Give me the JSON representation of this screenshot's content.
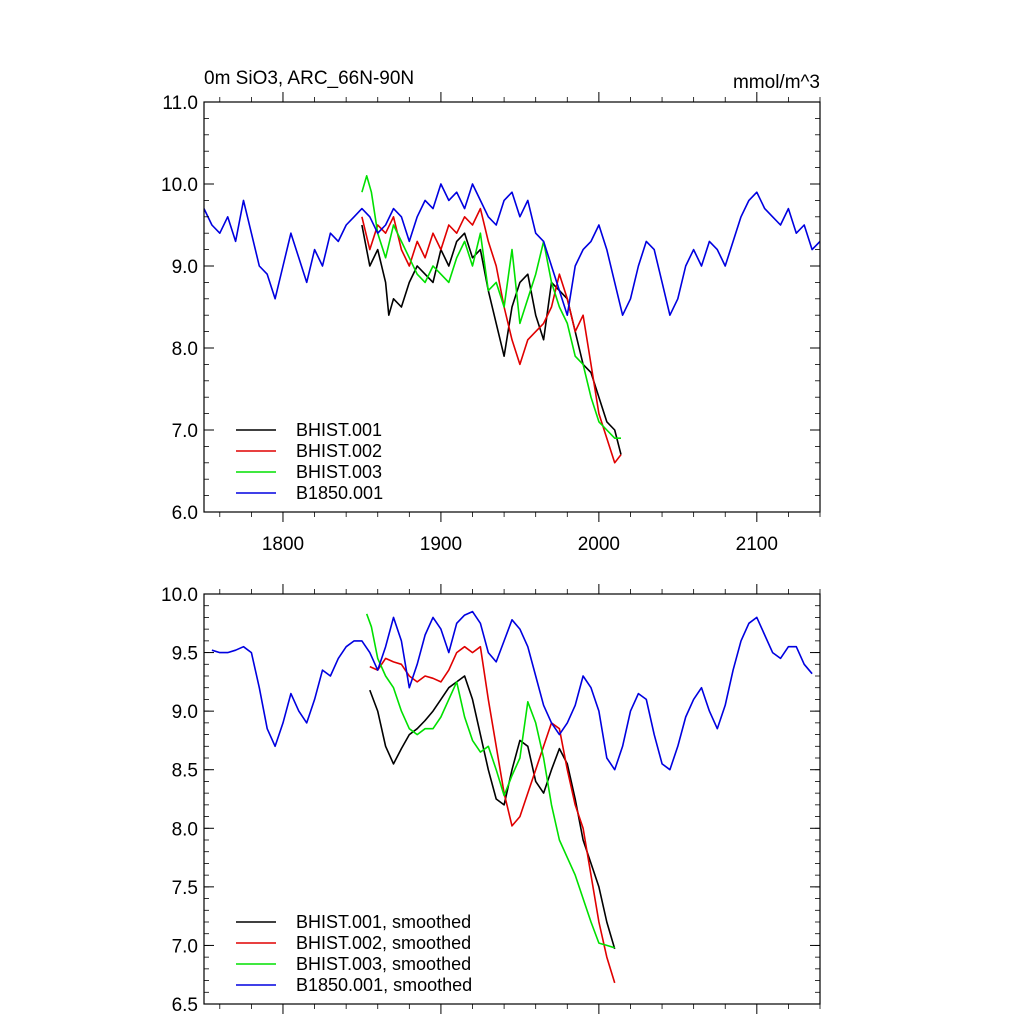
{
  "figure": {
    "colors": {
      "BHIST.001": "#000000",
      "BHIST.002": "#e00000",
      "BHIST.003": "#00e000",
      "B1850.001": "#0000e0"
    }
  },
  "chart_data": [
    {
      "type": "line",
      "title": "0m SiO3, ARC_66N-90N",
      "units": "mmol/m^3",
      "xlim": [
        1750,
        2140
      ],
      "ylim": [
        6.0,
        11.0
      ],
      "xticks": [
        1800,
        1900,
        2000,
        2100
      ],
      "xtick_labels": [
        "1800",
        "1900",
        "2000",
        "2100"
      ],
      "yticks": [
        6.0,
        7.0,
        8.0,
        9.0,
        10.0,
        11.0
      ],
      "ytick_labels": [
        "6.0",
        "7.0",
        "8.0",
        "9.0",
        "10.0",
        "11.0"
      ],
      "legend_position": "bottom-left",
      "series": [
        {
          "name": "BHIST.001",
          "color": "#000000",
          "x": [
            1850,
            1855,
            1860,
            1865,
            1867,
            1870,
            1875,
            1880,
            1885,
            1890,
            1895,
            1900,
            1905,
            1910,
            1915,
            1920,
            1925,
            1930,
            1935,
            1940,
            1945,
            1950,
            1955,
            1960,
            1965,
            1970,
            1975,
            1980,
            1985,
            1990,
            1995,
            2000,
            2005,
            2010,
            2014
          ],
          "y": [
            9.5,
            9.0,
            9.2,
            8.8,
            8.4,
            8.6,
            8.5,
            8.8,
            9.0,
            8.9,
            8.8,
            9.2,
            9.0,
            9.3,
            9.4,
            9.1,
            9.2,
            8.7,
            8.3,
            7.9,
            8.5,
            8.8,
            8.9,
            8.4,
            8.1,
            8.8,
            8.7,
            8.6,
            8.2,
            7.8,
            7.7,
            7.4,
            7.1,
            7.0,
            6.7
          ]
        },
        {
          "name": "BHIST.002",
          "color": "#e00000",
          "x": [
            1850,
            1855,
            1860,
            1865,
            1870,
            1875,
            1880,
            1885,
            1890,
            1895,
            1900,
            1905,
            1910,
            1915,
            1920,
            1925,
            1930,
            1935,
            1940,
            1945,
            1950,
            1955,
            1960,
            1965,
            1970,
            1975,
            1980,
            1985,
            1990,
            1995,
            2000,
            2005,
            2010,
            2014
          ],
          "y": [
            9.6,
            9.2,
            9.5,
            9.4,
            9.6,
            9.2,
            9.0,
            9.3,
            9.1,
            9.4,
            9.2,
            9.5,
            9.4,
            9.6,
            9.5,
            9.7,
            9.3,
            9.0,
            8.5,
            8.1,
            7.8,
            8.1,
            8.2,
            8.3,
            8.5,
            8.9,
            8.6,
            8.2,
            8.4,
            7.8,
            7.2,
            6.9,
            6.6,
            6.7
          ]
        },
        {
          "name": "BHIST.003",
          "color": "#00e000",
          "x": [
            1850,
            1853,
            1856,
            1860,
            1865,
            1870,
            1875,
            1880,
            1885,
            1890,
            1895,
            1900,
            1905,
            1910,
            1915,
            1920,
            1925,
            1930,
            1935,
            1940,
            1945,
            1950,
            1955,
            1960,
            1965,
            1970,
            1975,
            1980,
            1985,
            1990,
            1995,
            2000,
            2005,
            2010,
            2014
          ],
          "y": [
            9.9,
            10.1,
            9.9,
            9.4,
            9.1,
            9.5,
            9.3,
            9.1,
            8.9,
            8.8,
            9.0,
            8.9,
            8.8,
            9.1,
            9.3,
            9.0,
            9.4,
            8.7,
            8.8,
            8.5,
            9.2,
            8.3,
            8.6,
            8.9,
            9.3,
            8.8,
            8.5,
            8.3,
            7.9,
            7.8,
            7.4,
            7.1,
            7.0,
            6.9,
            6.9
          ]
        },
        {
          "name": "B1850.001",
          "color": "#0000e0",
          "x": [
            1750,
            1755,
            1760,
            1765,
            1770,
            1775,
            1780,
            1785,
            1790,
            1795,
            1800,
            1805,
            1810,
            1815,
            1820,
            1825,
            1830,
            1835,
            1840,
            1845,
            1850,
            1855,
            1860,
            1865,
            1870,
            1875,
            1880,
            1885,
            1890,
            1895,
            1900,
            1905,
            1910,
            1915,
            1920,
            1925,
            1930,
            1935,
            1940,
            1945,
            1950,
            1955,
            1960,
            1965,
            1970,
            1975,
            1980,
            1985,
            1990,
            1995,
            2000,
            2005,
            2010,
            2015,
            2020,
            2025,
            2030,
            2035,
            2040,
            2045,
            2050,
            2055,
            2060,
            2065,
            2070,
            2075,
            2080,
            2085,
            2090,
            2095,
            2100,
            2105,
            2110,
            2115,
            2120,
            2125,
            2130,
            2135,
            2140
          ],
          "y": [
            9.7,
            9.5,
            9.4,
            9.6,
            9.3,
            9.8,
            9.4,
            9.0,
            8.9,
            8.6,
            9.0,
            9.4,
            9.1,
            8.8,
            9.2,
            9.0,
            9.4,
            9.3,
            9.5,
            9.6,
            9.7,
            9.6,
            9.4,
            9.5,
            9.7,
            9.6,
            9.3,
            9.6,
            9.8,
            9.7,
            10.0,
            9.8,
            9.9,
            9.7,
            10.0,
            9.8,
            9.6,
            9.5,
            9.8,
            9.9,
            9.6,
            9.8,
            9.4,
            9.3,
            9.0,
            8.7,
            8.4,
            9.0,
            9.2,
            9.3,
            9.5,
            9.2,
            8.8,
            8.4,
            8.6,
            9.0,
            9.3,
            9.2,
            8.8,
            8.4,
            8.6,
            9.0,
            9.2,
            9.0,
            9.3,
            9.2,
            9.0,
            9.3,
            9.6,
            9.8,
            9.9,
            9.7,
            9.6,
            9.5,
            9.7,
            9.4,
            9.5,
            9.2,
            9.3
          ]
        }
      ]
    },
    {
      "type": "line",
      "xlim": [
        1750,
        2140
      ],
      "ylim": [
        6.5,
        10.0
      ],
      "xticks": [
        1800,
        1900,
        2000,
        2100
      ],
      "xtick_labels": [],
      "yticks": [
        6.5,
        7.0,
        7.5,
        8.0,
        8.5,
        9.0,
        9.5,
        10.0
      ],
      "ytick_labels": [
        "6.5",
        "7.0",
        "7.5",
        "8.0",
        "8.5",
        "9.0",
        "9.5",
        "10.0"
      ],
      "legend_position": "bottom-left",
      "series": [
        {
          "name": "BHIST.001, smoothed",
          "color": "#000000",
          "x": [
            1855,
            1860,
            1865,
            1870,
            1875,
            1880,
            1885,
            1890,
            1895,
            1900,
            1905,
            1910,
            1915,
            1920,
            1925,
            1930,
            1935,
            1940,
            1945,
            1950,
            1955,
            1960,
            1965,
            1970,
            1975,
            1980,
            1985,
            1990,
            1995,
            2000,
            2005,
            2010
          ],
          "y": [
            9.18,
            9.0,
            8.7,
            8.55,
            8.68,
            8.8,
            8.85,
            8.92,
            9.0,
            9.1,
            9.2,
            9.25,
            9.3,
            9.1,
            8.8,
            8.5,
            8.25,
            8.2,
            8.5,
            8.75,
            8.7,
            8.4,
            8.3,
            8.5,
            8.68,
            8.55,
            8.25,
            7.9,
            7.7,
            7.5,
            7.2,
            6.97
          ]
        },
        {
          "name": "BHIST.002, smoothed",
          "color": "#e00000",
          "x": [
            1855,
            1860,
            1865,
            1870,
            1875,
            1880,
            1885,
            1890,
            1895,
            1900,
            1905,
            1910,
            1915,
            1920,
            1925,
            1930,
            1935,
            1940,
            1945,
            1950,
            1955,
            1960,
            1965,
            1970,
            1975,
            1980,
            1985,
            1990,
            1995,
            2000,
            2005,
            2010
          ],
          "y": [
            9.38,
            9.35,
            9.45,
            9.42,
            9.4,
            9.3,
            9.25,
            9.3,
            9.28,
            9.25,
            9.35,
            9.5,
            9.55,
            9.5,
            9.55,
            9.1,
            8.7,
            8.3,
            8.02,
            8.1,
            8.3,
            8.5,
            8.7,
            8.9,
            8.85,
            8.5,
            8.2,
            8.0,
            7.6,
            7.2,
            6.9,
            6.68
          ]
        },
        {
          "name": "BHIST.003, smoothed",
          "color": "#00e000",
          "x": [
            1853,
            1856,
            1860,
            1865,
            1870,
            1875,
            1880,
            1885,
            1890,
            1895,
            1900,
            1905,
            1910,
            1915,
            1920,
            1925,
            1930,
            1935,
            1940,
            1945,
            1950,
            1955,
            1960,
            1965,
            1970,
            1975,
            1980,
            1985,
            1990,
            1995,
            2000,
            2005,
            2010
          ],
          "y": [
            9.83,
            9.72,
            9.45,
            9.3,
            9.2,
            9.0,
            8.85,
            8.8,
            8.85,
            8.85,
            8.95,
            9.1,
            9.25,
            8.95,
            8.75,
            8.65,
            8.7,
            8.5,
            8.28,
            8.45,
            8.6,
            9.08,
            8.9,
            8.6,
            8.2,
            7.9,
            7.75,
            7.6,
            7.4,
            7.2,
            7.02,
            7.0,
            6.98
          ]
        },
        {
          "name": "B1850.001, smoothed",
          "color": "#0000e0",
          "x": [
            1755,
            1760,
            1765,
            1770,
            1775,
            1780,
            1785,
            1790,
            1795,
            1800,
            1805,
            1810,
            1815,
            1820,
            1825,
            1830,
            1835,
            1840,
            1845,
            1850,
            1855,
            1860,
            1865,
            1870,
            1875,
            1880,
            1885,
            1890,
            1895,
            1900,
            1905,
            1910,
            1915,
            1920,
            1925,
            1930,
            1935,
            1940,
            1945,
            1950,
            1955,
            1960,
            1965,
            1970,
            1975,
            1980,
            1985,
            1990,
            1995,
            2000,
            2005,
            2010,
            2015,
            2020,
            2025,
            2030,
            2035,
            2040,
            2045,
            2050,
            2055,
            2060,
            2065,
            2070,
            2075,
            2080,
            2085,
            2090,
            2095,
            2100,
            2105,
            2110,
            2115,
            2120,
            2125,
            2130,
            2135
          ],
          "y": [
            9.52,
            9.5,
            9.5,
            9.52,
            9.55,
            9.5,
            9.2,
            8.85,
            8.7,
            8.9,
            9.15,
            9.0,
            8.9,
            9.1,
            9.35,
            9.3,
            9.45,
            9.55,
            9.6,
            9.6,
            9.5,
            9.35,
            9.55,
            9.8,
            9.6,
            9.2,
            9.4,
            9.65,
            9.8,
            9.7,
            9.5,
            9.75,
            9.82,
            9.85,
            9.75,
            9.5,
            9.42,
            9.6,
            9.78,
            9.7,
            9.55,
            9.3,
            9.05,
            8.9,
            8.8,
            8.9,
            9.05,
            9.3,
            9.2,
            9.0,
            8.6,
            8.5,
            8.7,
            9.0,
            9.15,
            9.1,
            8.8,
            8.55,
            8.5,
            8.7,
            8.95,
            9.1,
            9.2,
            9.0,
            8.85,
            9.05,
            9.35,
            9.6,
            9.75,
            9.8,
            9.65,
            9.5,
            9.45,
            9.55,
            9.55,
            9.4,
            9.32
          ]
        }
      ]
    }
  ]
}
